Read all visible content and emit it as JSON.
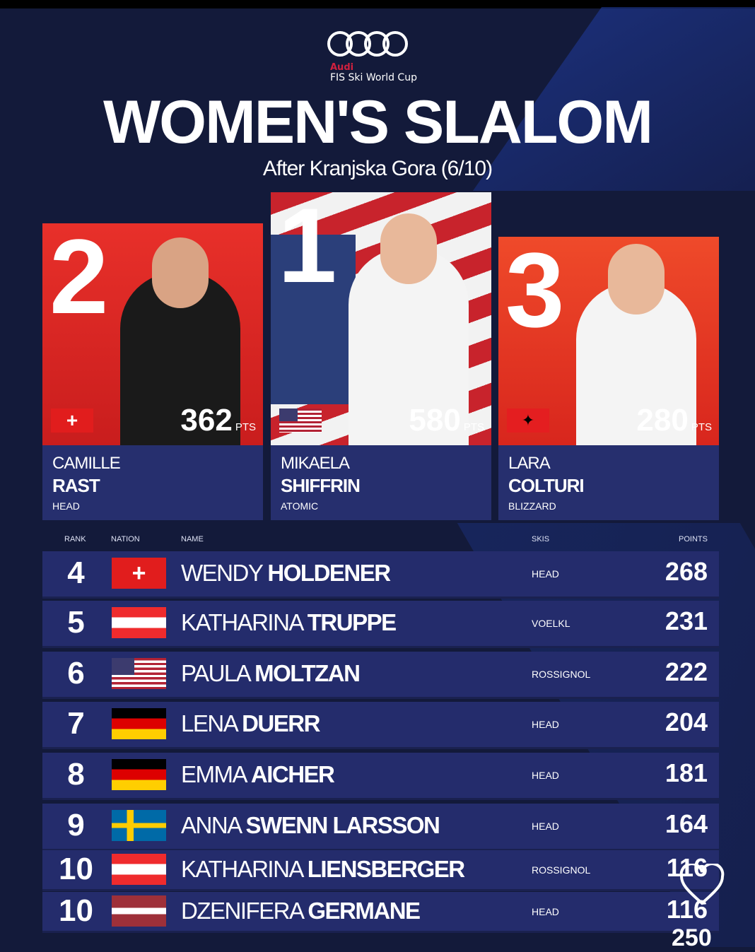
{
  "header": {
    "brand": "Audi",
    "series": "FIS Ski World Cup",
    "title": "WOMEN'S SLALOM",
    "subtitle": "After Kranjska Gora (6/10)"
  },
  "podium": [
    {
      "rank": "2",
      "first": "CAMILLE",
      "last": "RAST",
      "skis": "HEAD",
      "points": "362",
      "pts_label": "PTS",
      "nation": "SUI"
    },
    {
      "rank": "1",
      "first": "MIKAELA",
      "last": "SHIFFRIN",
      "skis": "ATOMIC",
      "points": "580",
      "pts_label": "PTS",
      "nation": "USA"
    },
    {
      "rank": "3",
      "first": "LARA",
      "last": "COLTURI",
      "skis": "BLIZZARD",
      "points": "280",
      "pts_label": "PTS",
      "nation": "ALB"
    }
  ],
  "table": {
    "headers": {
      "rank": "RANK",
      "nation": "NATION",
      "name": "NAME",
      "skis": "SKIS",
      "points": "POINTS"
    },
    "rows": [
      {
        "rank": "4",
        "nation": "SUI",
        "first": "WENDY",
        "last": "HOLDENER",
        "skis": "HEAD",
        "points": "268"
      },
      {
        "rank": "5",
        "nation": "AUT",
        "first": "KATHARINA",
        "last": "TRUPPE",
        "skis": "VOELKL",
        "points": "231"
      },
      {
        "rank": "6",
        "nation": "USA",
        "first": "PAULA",
        "last": "MOLTZAN",
        "skis": "ROSSIGNOL",
        "points": "222"
      },
      {
        "rank": "7",
        "nation": "GER",
        "first": "LENA",
        "last": "DUERR",
        "skis": "HEAD",
        "points": "204"
      },
      {
        "rank": "8",
        "nation": "GER",
        "first": "EMMA",
        "last": "AICHER",
        "skis": "HEAD",
        "points": "181"
      },
      {
        "rank": "9",
        "nation": "SWE",
        "first": "ANNA",
        "last": "SWENN LARSSON",
        "skis": "HEAD",
        "points": "164"
      },
      {
        "rank": "10",
        "nation": "AUT",
        "first": "KATHARINA",
        "last": "LIENSBERGER",
        "skis": "ROSSIGNOL",
        "points": "116"
      },
      {
        "rank": "10",
        "nation": "LAT",
        "first": "DZENIFERA",
        "last": "GERMANE",
        "skis": "HEAD",
        "points": "116"
      }
    ]
  },
  "overlay": {
    "icon": "heart-icon",
    "count": "250"
  },
  "colors": {
    "background": "#131a3a",
    "row": "#242c6c",
    "panel": "#262f6e",
    "accent": "#d0213f"
  }
}
